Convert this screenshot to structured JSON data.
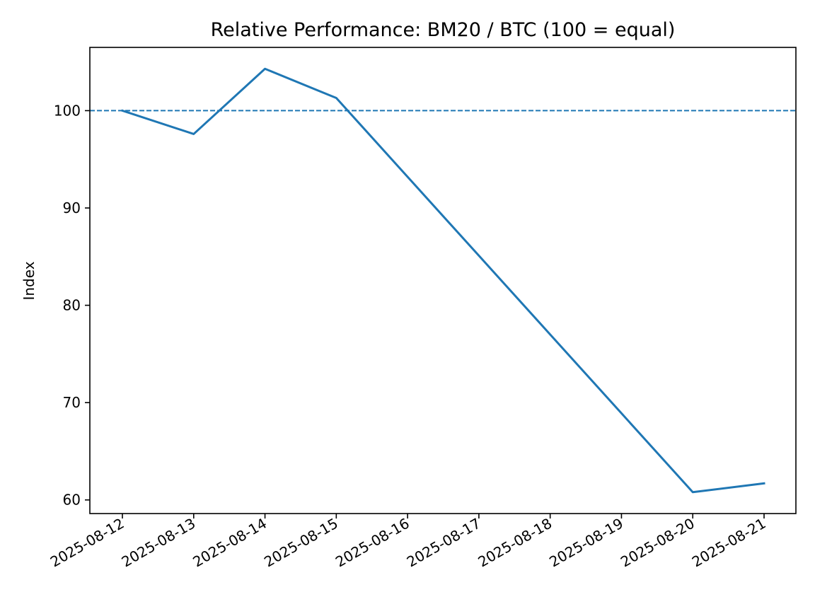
{
  "chart_data": {
    "type": "line",
    "title": "Relative Performance: BM20 / BTC (100 = equal)",
    "xlabel": "",
    "ylabel": "Index",
    "x": [
      "2025-08-12",
      "2025-08-13",
      "2025-08-14",
      "2025-08-15",
      "2025-08-16",
      "2025-08-17",
      "2025-08-18",
      "2025-08-19",
      "2025-08-20",
      "2025-08-21"
    ],
    "series": [
      {
        "values": [
          100.0,
          97.6,
          104.3,
          101.3,
          93.2,
          85.1,
          77.0,
          68.9,
          60.8,
          61.7
        ],
        "color": "#1f77b4"
      }
    ],
    "reference_line": {
      "y": 100,
      "style": "dashed",
      "color": "#1f77b4"
    },
    "yticks": [
      60,
      70,
      80,
      90,
      100
    ],
    "ylim": [
      58.6,
      106.5
    ],
    "grid": false,
    "legend": "none"
  }
}
